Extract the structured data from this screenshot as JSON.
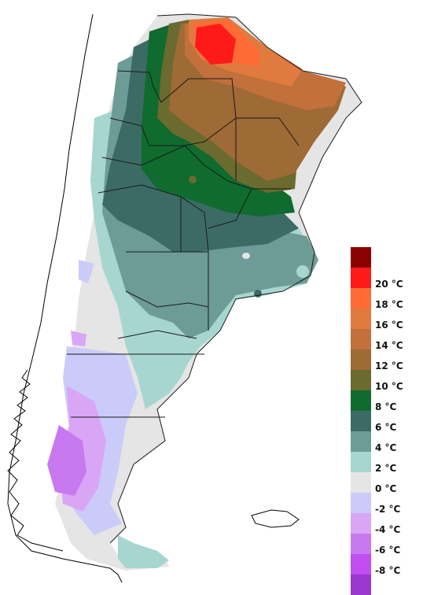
{
  "legend": {
    "items": [
      {
        "label": "",
        "color": "#8B0000"
      },
      {
        "label": "20 °C",
        "color": "#FF1A1A"
      },
      {
        "label": "18 °C",
        "color": "#FF6B35"
      },
      {
        "label": "16 °C",
        "color": "#E07A3F"
      },
      {
        "label": "14 °C",
        "color": "#C2703C"
      },
      {
        "label": "12 °C",
        "color": "#9E6A35"
      },
      {
        "label": "10 °C",
        "color": "#6B6A2F"
      },
      {
        "label": "8 °C",
        "color": "#0F6B2E"
      },
      {
        "label": "6 °C",
        "color": "#3C6B66"
      },
      {
        "label": "4 °C",
        "color": "#6D9B96"
      },
      {
        "label": "2 °C",
        "color": "#A7D6D0"
      },
      {
        "label": "0 °C",
        "color": "#E5E5E5"
      },
      {
        "label": "-2 °C",
        "color": "#CBCBFA"
      },
      {
        "label": "-4 °C",
        "color": "#D9A6F5"
      },
      {
        "label": "-6 °C",
        "color": "#C879F0"
      },
      {
        "label": "-8 °C",
        "color": "#C24DF0"
      },
      {
        "label": "",
        "color": "#9A37CF"
      }
    ]
  },
  "map": {
    "region_colors": {
      "ocean": "#ffffff",
      "chile_outline": "#000000",
      "province_border": "#1a1a1a"
    }
  }
}
